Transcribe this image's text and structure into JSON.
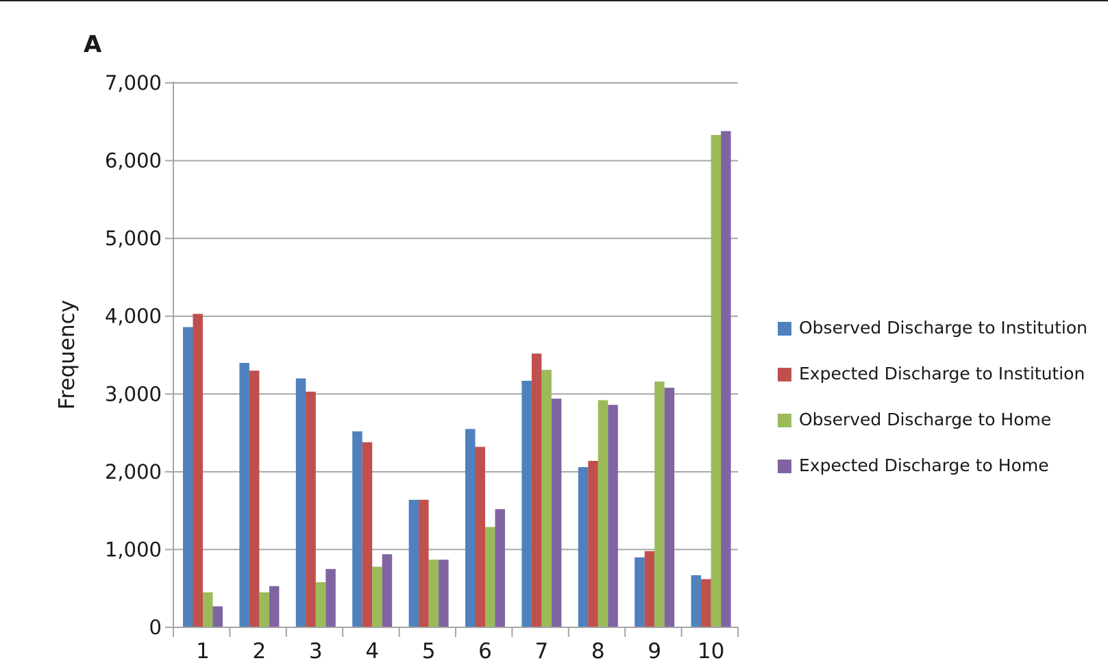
{
  "panel_label": "A",
  "chart_data": {
    "type": "bar",
    "title": "",
    "xlabel": "",
    "ylabel": "Frequency",
    "ylim": [
      0,
      7000
    ],
    "yticks": [
      0,
      1000,
      2000,
      3000,
      4000,
      5000,
      6000,
      7000
    ],
    "ytick_labels": [
      "0",
      "1,000",
      "2,000",
      "3,000",
      "4,000",
      "5,000",
      "6,000",
      "7,000"
    ],
    "categories": [
      "1",
      "2",
      "3",
      "4",
      "5",
      "6",
      "7",
      "8",
      "9",
      "10"
    ],
    "grid": "horizontal",
    "legend_position": "right",
    "series": [
      {
        "name": "Observed Discharge to Institution",
        "color": "#4f81bd",
        "values": [
          3860,
          3400,
          3200,
          2520,
          1640,
          2550,
          3170,
          2060,
          900,
          670
        ]
      },
      {
        "name": "Expected Discharge to Institution",
        "color": "#c0504d",
        "values": [
          4030,
          3300,
          3030,
          2380,
          1640,
          2320,
          3520,
          2140,
          980,
          620
        ]
      },
      {
        "name": "Observed Discharge to Home",
        "color": "#9bbb59",
        "values": [
          450,
          450,
          580,
          780,
          870,
          1290,
          3310,
          2920,
          3160,
          6330
        ]
      },
      {
        "name": "Expected Discharge to Home",
        "color": "#8064a2",
        "values": [
          270,
          530,
          750,
          940,
          870,
          1520,
          2940,
          2860,
          3080,
          6380
        ]
      }
    ]
  }
}
